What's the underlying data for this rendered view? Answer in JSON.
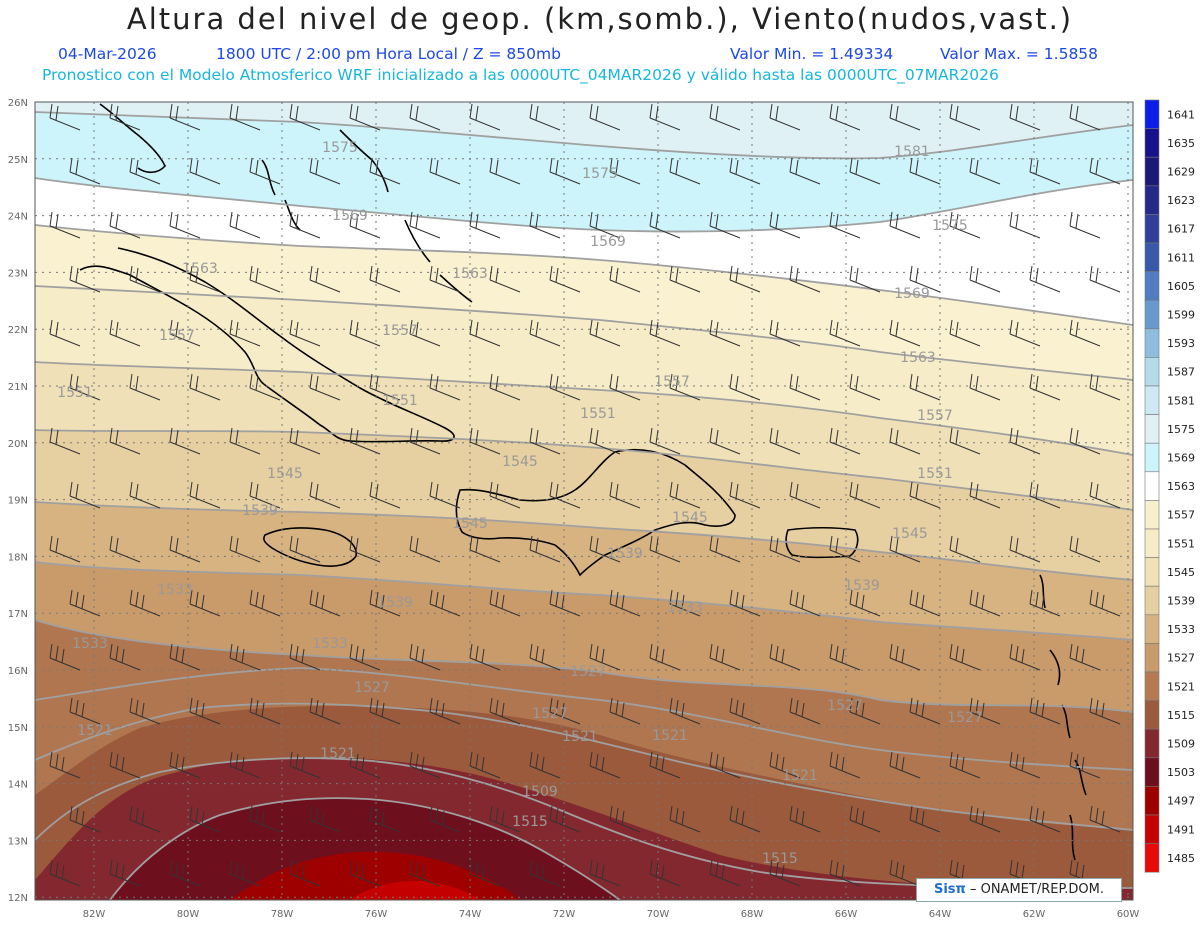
{
  "header": {
    "title": "Altura del nivel de geop. (km,somb.), Viento(nudos,vast.)",
    "date": "04-Mar-2026",
    "time_info": "1800 UTC / 2:00 pm Hora Local / Z = 850mb",
    "valor_min": "Valor Min. = 1.49334",
    "valor_max": "Valor Max. = 1.5858",
    "forecast_info": "Pronostico con el Modelo Atmosferico WRF inicializado a las 0000UTC_04MAR2026 y válido hasta las  0000UTC_07MAR2026"
  },
  "axes": {
    "lat_labels": [
      "26N",
      "25N",
      "24N",
      "23N",
      "22N",
      "21N",
      "20N",
      "19N",
      "18N",
      "17N",
      "16N",
      "15N",
      "14N",
      "13N",
      "12N"
    ],
    "lon_labels": [
      "82W",
      "80W",
      "78W",
      "76W",
      "74W",
      "72W",
      "70W",
      "68W",
      "66W",
      "64W",
      "62W",
      "60W"
    ]
  },
  "colorbar": {
    "levels": [
      "1641",
      "1635",
      "1629",
      "1623",
      "1617",
      "1611",
      "1605",
      "1599",
      "1593",
      "1587",
      "1581",
      "1575",
      "1569",
      "1563",
      "1557",
      "1551",
      "1545",
      "1539",
      "1533",
      "1527",
      "1521",
      "1515",
      "1509",
      "1503",
      "1497",
      "1491",
      "1485"
    ],
    "colors": [
      "#0a1ee8",
      "#15128c",
      "#1c1878",
      "#232a8a",
      "#2f3f9a",
      "#3a58aa",
      "#4f7dbf",
      "#6799cc",
      "#8fbde0",
      "#b5dcea",
      "#cdeaf2",
      "#e0f1f6",
      "#cdf3fb",
      "#ffffff",
      "#f8f0cc",
      "#f6ecc8",
      "#efe0b8",
      "#e6cfa0",
      "#d7b382",
      "#c99a6a",
      "#b57a52",
      "#9b5a3c",
      "#842830",
      "#6e0f1e",
      "#9e0000",
      "#c40000",
      "#e80a0a"
    ]
  },
  "contour_labels": [
    "1575",
    "1581",
    "1575",
    "1575",
    "1569",
    "1569",
    "1569",
    "1563",
    "1563",
    "1563",
    "1557",
    "1557",
    "1557",
    "1557",
    "1551",
    "1551",
    "1551",
    "1551",
    "1545",
    "1545",
    "1545",
    "1545",
    "1545",
    "1539",
    "1539",
    "1539",
    "1539",
    "1533",
    "1533",
    "1533",
    "1533",
    "1527",
    "1527",
    "1527",
    "1527",
    "1527",
    "1521",
    "1521",
    "1521",
    "1521",
    "1521",
    "1515",
    "1515",
    "1509"
  ],
  "credit": {
    "logo": "Sisπ",
    "text": "– ONAMET/REP.DOM."
  }
}
